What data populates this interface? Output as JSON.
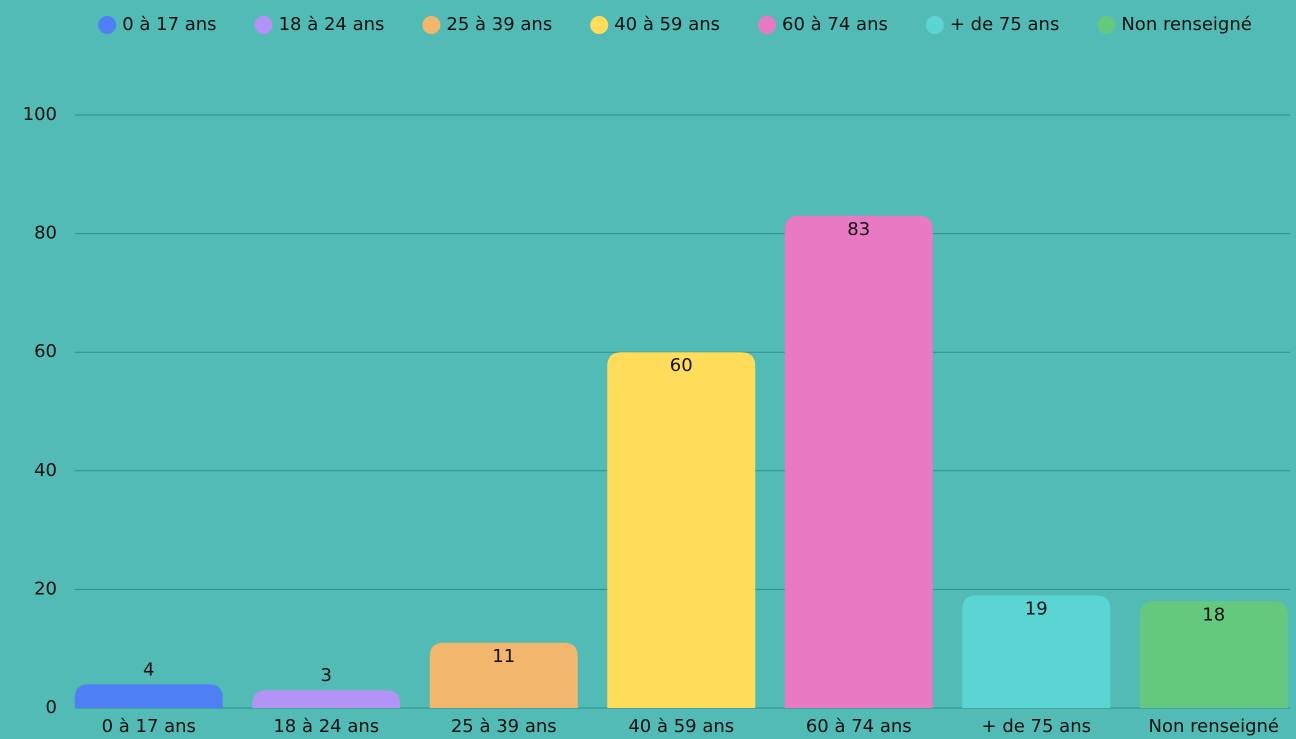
{
  "chart_data": {
    "type": "bar",
    "categories": [
      "0 à 17 ans",
      "18 à 24 ans",
      "25 à 39 ans",
      "40 à 59 ans",
      "60 à 74 ans",
      "+ de 75 ans",
      "Non renseigné"
    ],
    "values": [
      4,
      3,
      11,
      60,
      83,
      19,
      18
    ],
    "colors": [
      "#4f7ff5",
      "#b393f5",
      "#f2b76d",
      "#ffdd5a",
      "#e87ac4",
      "#5ad5d4",
      "#64c97f"
    ],
    "ylim": [
      0,
      100
    ],
    "yticks": [
      0,
      20,
      40,
      60,
      80,
      100
    ],
    "grid": true,
    "legend": "top"
  }
}
